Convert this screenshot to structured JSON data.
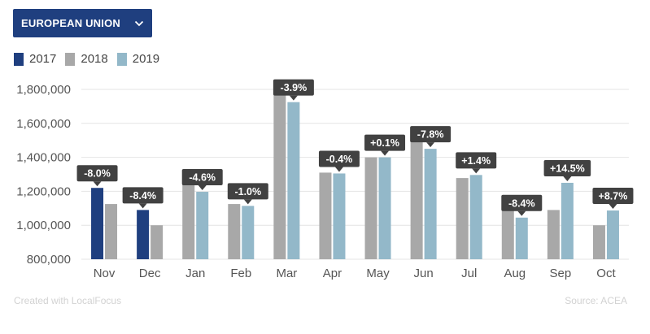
{
  "selector": {
    "label": "EUROPEAN UNION",
    "icon": "chevron-down-icon"
  },
  "legend": [
    {
      "name": "2017",
      "color": "#1f3f7f"
    },
    {
      "name": "2018",
      "color": "#a8a8a8"
    },
    {
      "name": "2019",
      "color": "#93b8c9"
    }
  ],
  "chart_data": {
    "type": "bar",
    "categories": [
      "Nov",
      "Dec",
      "Jan",
      "Feb",
      "Mar",
      "Apr",
      "May",
      "Jun",
      "Jul",
      "Aug",
      "Sep",
      "Oct"
    ],
    "series": [
      {
        "name": "2017",
        "values": [
          1220000,
          1090000,
          null,
          null,
          null,
          null,
          null,
          null,
          null,
          null,
          null,
          null
        ]
      },
      {
        "name": "2018",
        "values": [
          1125000,
          1000000,
          1255000,
          1125000,
          1795000,
          1310000,
          1400000,
          1570000,
          1278000,
          1140000,
          1090000,
          1000000
        ]
      },
      {
        "name": "2019",
        "values": [
          null,
          null,
          1197000,
          1114000,
          1725000,
          1305000,
          1400000,
          1450000,
          1296000,
          1045000,
          1250000,
          1087000
        ]
      }
    ],
    "change_labels": [
      "-8.0%",
      "-8.4%",
      "-4.6%",
      "-1.0%",
      "-3.9%",
      "-0.4%",
      "+0.1%",
      "-7.8%",
      "+1.4%",
      "-8.4%",
      "+14.5%",
      "+8.7%"
    ],
    "y_ticks": [
      "800,000",
      "1,000,000",
      "1,200,000",
      "1,400,000",
      "1,600,000",
      "1,800,000"
    ],
    "ylim": [
      800000,
      1800000
    ],
    "grid": true,
    "legend_position": "top-left"
  },
  "footer": {
    "credit": "Created with LocalFocus",
    "source": "Source: ACEA"
  }
}
